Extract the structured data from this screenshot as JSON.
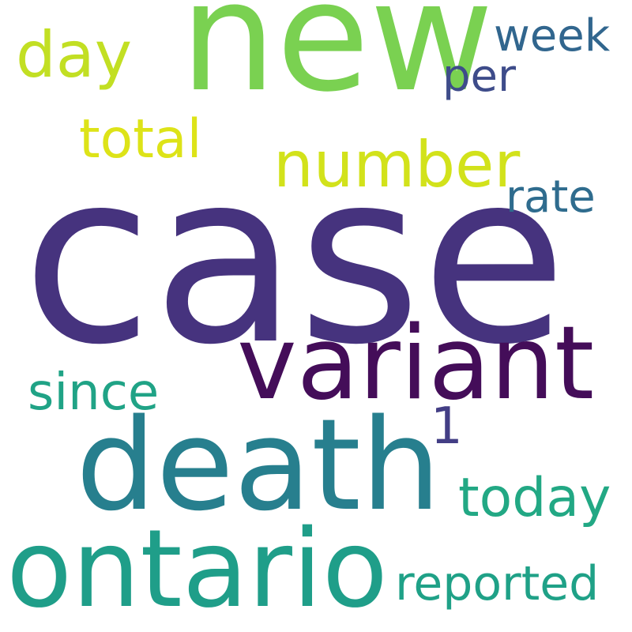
{
  "word_cloud": {
    "words": [
      {
        "key": "case",
        "text": "case",
        "color": "#46337e"
      },
      {
        "key": "new",
        "text": "new",
        "color": "#7ad151"
      },
      {
        "key": "death",
        "text": "death",
        "color": "#277f8e"
      },
      {
        "key": "variant",
        "text": "variant",
        "color": "#440d59"
      },
      {
        "key": "ontario",
        "text": "ontario",
        "color": "#1f9e89"
      },
      {
        "key": "number",
        "text": "number",
        "color": "#d2e21b"
      },
      {
        "key": "day",
        "text": "day",
        "color": "#c2df23"
      },
      {
        "key": "total",
        "text": "total",
        "color": "#dde318"
      },
      {
        "key": "today",
        "text": "today",
        "color": "#22a884"
      },
      {
        "key": "reported",
        "text": "reported",
        "color": "#1fa187"
      },
      {
        "key": "since",
        "text": "since",
        "color": "#20a386"
      },
      {
        "key": "week",
        "text": "week",
        "color": "#31668e"
      },
      {
        "key": "per",
        "text": "per",
        "color": "#3e4c8a"
      },
      {
        "key": "rate",
        "text": "rate",
        "color": "#2f6c8e"
      },
      {
        "key": "1",
        "text": "1",
        "color": "#433e85"
      }
    ]
  }
}
